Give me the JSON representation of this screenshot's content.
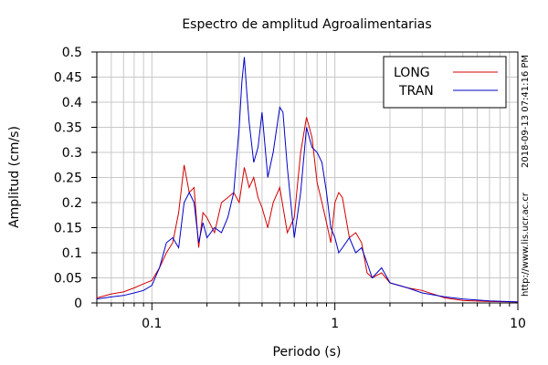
{
  "chart_data": {
    "type": "line",
    "title": "Espectro de amplitud Agroalimentarias",
    "xlabel": "Periodo (s)",
    "ylabel": "Amplitud (cm/s)",
    "x_scale": "log",
    "xlim": [
      0.05,
      10
    ],
    "ylim": [
      0,
      0.5
    ],
    "x_ticks": [
      "0.1",
      "1",
      "10"
    ],
    "y_ticks": [
      "0",
      "0.05",
      "0.1",
      "0.15",
      "0.2",
      "0.25",
      "0.3",
      "0.35",
      "0.4",
      "0.45",
      "0.5"
    ],
    "grid": true,
    "legend_position": "top-right",
    "side_texts": [
      "2018-09-13 07:41:16 PM",
      "http://www.lis.ucr.ac.cr"
    ],
    "series": [
      {
        "name": "LONG",
        "color": "#d40000",
        "x": [
          0.05,
          0.06,
          0.07,
          0.08,
          0.09,
          0.1,
          0.11,
          0.12,
          0.13,
          0.14,
          0.15,
          0.16,
          0.17,
          0.18,
          0.19,
          0.2,
          0.22,
          0.24,
          0.26,
          0.28,
          0.3,
          0.32,
          0.34,
          0.36,
          0.38,
          0.4,
          0.43,
          0.46,
          0.5,
          0.55,
          0.6,
          0.65,
          0.7,
          0.75,
          0.8,
          0.85,
          0.9,
          0.95,
          1.0,
          1.05,
          1.1,
          1.2,
          1.3,
          1.4,
          1.5,
          1.6,
          1.8,
          2.0,
          2.5,
          3.0,
          4.0,
          5.0,
          7.0,
          10.0
        ],
        "values": [
          0.01,
          0.018,
          0.022,
          0.03,
          0.038,
          0.045,
          0.07,
          0.1,
          0.12,
          0.18,
          0.275,
          0.22,
          0.23,
          0.11,
          0.18,
          0.17,
          0.14,
          0.2,
          0.21,
          0.22,
          0.2,
          0.27,
          0.23,
          0.25,
          0.21,
          0.19,
          0.15,
          0.2,
          0.23,
          0.14,
          0.17,
          0.3,
          0.37,
          0.33,
          0.24,
          0.2,
          0.16,
          0.12,
          0.2,
          0.22,
          0.21,
          0.13,
          0.14,
          0.12,
          0.06,
          0.05,
          0.06,
          0.04,
          0.03,
          0.025,
          0.01,
          0.005,
          0.003,
          0.002
        ]
      },
      {
        "name": "TRAN",
        "color": "#0000c8",
        "x": [
          0.05,
          0.06,
          0.07,
          0.08,
          0.09,
          0.1,
          0.11,
          0.12,
          0.13,
          0.14,
          0.15,
          0.16,
          0.17,
          0.18,
          0.19,
          0.2,
          0.22,
          0.24,
          0.26,
          0.28,
          0.3,
          0.31,
          0.32,
          0.33,
          0.34,
          0.36,
          0.38,
          0.4,
          0.43,
          0.46,
          0.5,
          0.52,
          0.55,
          0.6,
          0.65,
          0.7,
          0.75,
          0.8,
          0.85,
          0.9,
          0.95,
          1.0,
          1.05,
          1.1,
          1.2,
          1.3,
          1.4,
          1.5,
          1.6,
          1.8,
          2.0,
          2.5,
          3.0,
          4.0,
          5.0,
          7.0,
          10.0
        ],
        "values": [
          0.008,
          0.012,
          0.015,
          0.02,
          0.025,
          0.035,
          0.07,
          0.12,
          0.13,
          0.11,
          0.2,
          0.22,
          0.2,
          0.12,
          0.16,
          0.13,
          0.15,
          0.14,
          0.17,
          0.22,
          0.35,
          0.44,
          0.49,
          0.42,
          0.36,
          0.28,
          0.31,
          0.38,
          0.25,
          0.3,
          0.39,
          0.38,
          0.27,
          0.13,
          0.22,
          0.35,
          0.31,
          0.3,
          0.28,
          0.22,
          0.15,
          0.13,
          0.1,
          0.11,
          0.13,
          0.1,
          0.11,
          0.08,
          0.05,
          0.07,
          0.04,
          0.03,
          0.02,
          0.012,
          0.008,
          0.004,
          0.002
        ]
      }
    ]
  }
}
